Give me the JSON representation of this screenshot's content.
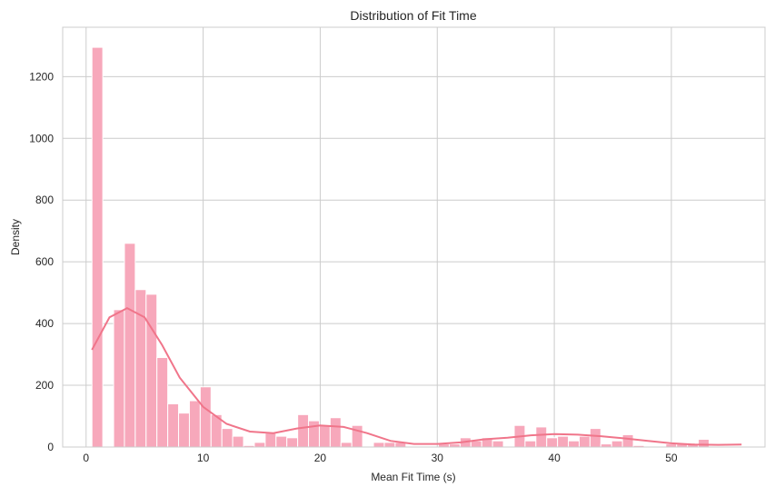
{
  "chart_data": {
    "type": "bar",
    "title": "Distribution of Fit Time",
    "xlabel": "Mean Fit Time (s)",
    "ylabel": "Density",
    "xlim": [
      -2,
      58
    ],
    "ylim": [
      0,
      1360
    ],
    "xticks": [
      0,
      10,
      20,
      30,
      40,
      50
    ],
    "yticks": [
      0,
      200,
      400,
      600,
      800,
      1000,
      1200
    ],
    "grid": true,
    "bar_color": "#f7a8bb",
    "line_color": "#f0758a",
    "bins": {
      "start": 0.5,
      "width": 0.925,
      "counts": [
        1295,
        0,
        445,
        660,
        510,
        495,
        290,
        140,
        110,
        150,
        195,
        105,
        60,
        35,
        5,
        15,
        45,
        35,
        30,
        105,
        85,
        70,
        95,
        15,
        70,
        0,
        15,
        15,
        15,
        0,
        0,
        0,
        10,
        10,
        30,
        20,
        30,
        20,
        0,
        70,
        20,
        65,
        30,
        35,
        20,
        35,
        60,
        10,
        20,
        40,
        5,
        0,
        0,
        10,
        10,
        10,
        25,
        0
      ]
    },
    "kde": {
      "x": [
        0.5,
        2,
        3.5,
        5,
        6.5,
        8,
        10,
        12,
        14,
        16,
        18,
        20,
        22,
        24,
        26,
        28,
        30,
        32,
        34,
        36,
        38,
        40,
        42,
        44,
        46,
        48,
        50,
        52,
        54,
        56
      ],
      "y": [
        315,
        420,
        450,
        420,
        330,
        225,
        130,
        75,
        50,
        45,
        60,
        70,
        65,
        45,
        20,
        10,
        10,
        15,
        25,
        30,
        38,
        42,
        40,
        35,
        28,
        20,
        12,
        8,
        7,
        8
      ]
    }
  }
}
